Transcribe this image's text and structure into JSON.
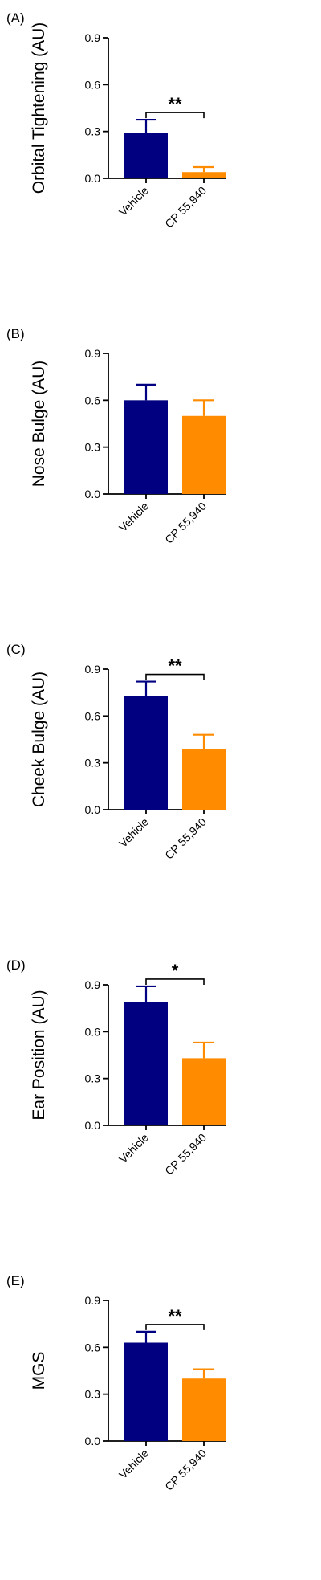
{
  "colors": {
    "vehicle": "#000080",
    "cp": "#ff8c00",
    "axis": "#000000"
  },
  "chart_data": [
    {
      "type": "bar",
      "panel": "(A)",
      "ylabel": "Orbital Tightening (AU)",
      "categories": [
        "Vehicle",
        "CP 55,940"
      ],
      "values": [
        0.29,
        0.04
      ],
      "errors": [
        0.085,
        0.032
      ],
      "ylim": [
        0,
        0.9
      ],
      "yticks": [
        "0.0",
        "0.3",
        "0.6",
        "0.9"
      ],
      "significance": "**"
    },
    {
      "type": "bar",
      "panel": "(B)",
      "ylabel": "Nose Bulge (AU)",
      "categories": [
        "Vehicle",
        "CP 55,940"
      ],
      "values": [
        0.6,
        0.5
      ],
      "errors": [
        0.1,
        0.1
      ],
      "ylim": [
        0,
        0.9
      ],
      "yticks": [
        "0.0",
        "0.3",
        "0.6",
        "0.9"
      ],
      "significance": ""
    },
    {
      "type": "bar",
      "panel": "(C)",
      "ylabel": "Cheek Bulge (AU)",
      "categories": [
        "Vehicle",
        "CP 55,940"
      ],
      "values": [
        0.73,
        0.39
      ],
      "errors": [
        0.09,
        0.09
      ],
      "ylim": [
        0,
        0.9
      ],
      "yticks": [
        "0.0",
        "0.3",
        "0.6",
        "0.9"
      ],
      "significance": "**"
    },
    {
      "type": "bar",
      "panel": "(D)",
      "ylabel": "Ear Position (AU)",
      "categories": [
        "Vehicle",
        "CP 55,940"
      ],
      "values": [
        0.79,
        0.43
      ],
      "errors": [
        0.1,
        0.1
      ],
      "ylim": [
        0,
        0.9
      ],
      "yticks": [
        "0.0",
        "0.3",
        "0.6",
        "0.9"
      ],
      "significance": "*"
    },
    {
      "type": "bar",
      "panel": "(E)",
      "ylabel": "MGS",
      "categories": [
        "Vehicle",
        "CP 55,940"
      ],
      "values": [
        0.63,
        0.4
      ],
      "errors": [
        0.07,
        0.06
      ],
      "ylim": [
        0,
        0.9
      ],
      "yticks": [
        "0.0",
        "0.3",
        "0.6",
        "0.9"
      ],
      "significance": "**"
    }
  ]
}
